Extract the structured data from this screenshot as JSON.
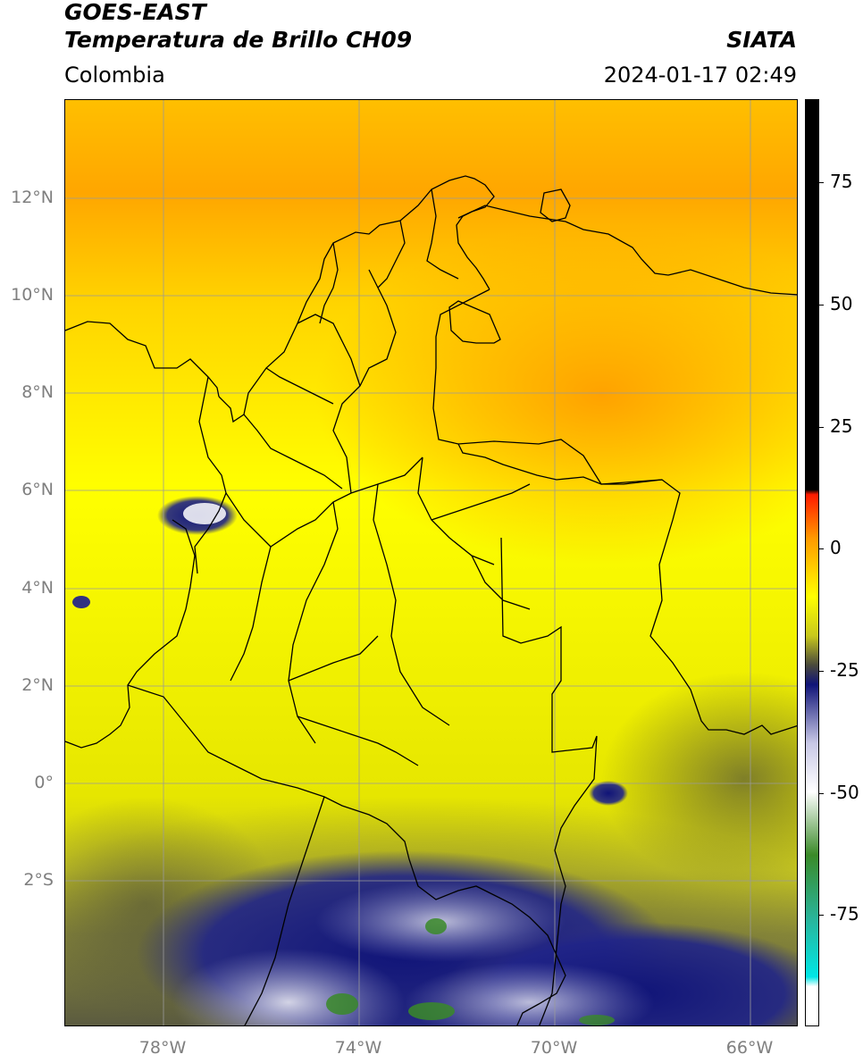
{
  "header": {
    "satellite": "GOES-EAST",
    "product": "Temperatura de Brillo CH09",
    "region": "Colombia",
    "agency": "SIATA",
    "datetime": "2024-01-17 02:49"
  },
  "map": {
    "lon_range": [
      -80,
      -65
    ],
    "lat_range": [
      -5,
      14
    ],
    "lat_ticks": [
      {
        "value": 12,
        "label": "12°N"
      },
      {
        "value": 10,
        "label": "10°N"
      },
      {
        "value": 8,
        "label": "8°N"
      },
      {
        "value": 6,
        "label": "6°N"
      },
      {
        "value": 4,
        "label": "4°N"
      },
      {
        "value": 2,
        "label": "2°N"
      },
      {
        "value": 0,
        "label": "0°"
      },
      {
        "value": -2,
        "label": "2°S"
      }
    ],
    "lon_ticks": [
      {
        "value": -78,
        "label": "78°W"
      },
      {
        "value": -74,
        "label": "74°W"
      },
      {
        "value": -70,
        "label": "70°W"
      },
      {
        "value": -66,
        "label": "66°W"
      }
    ]
  },
  "colorbar": {
    "range": [
      -100,
      90
    ],
    "ticks": [
      {
        "value": 75,
        "label": "75"
      },
      {
        "value": 50,
        "label": "50"
      },
      {
        "value": 25,
        "label": "25"
      },
      {
        "value": 0,
        "label": "0"
      },
      {
        "value": -25,
        "label": "-25"
      },
      {
        "value": -50,
        "label": "-50"
      },
      {
        "value": -75,
        "label": "-75"
      }
    ],
    "colors": {
      "above_10": "#000000",
      "warm_red": "#ff1a00",
      "orange": "#ff9a00",
      "yellow": "#ffff00",
      "olive": "#c8c81c",
      "dark_gray": "#4a4a3c",
      "navy": "#101478",
      "light_lavender": "#c8c8e6",
      "white": "#ffffff",
      "green": "#3a8a28",
      "teal": "#2ab49a",
      "cyan": "#00e6e6"
    }
  }
}
